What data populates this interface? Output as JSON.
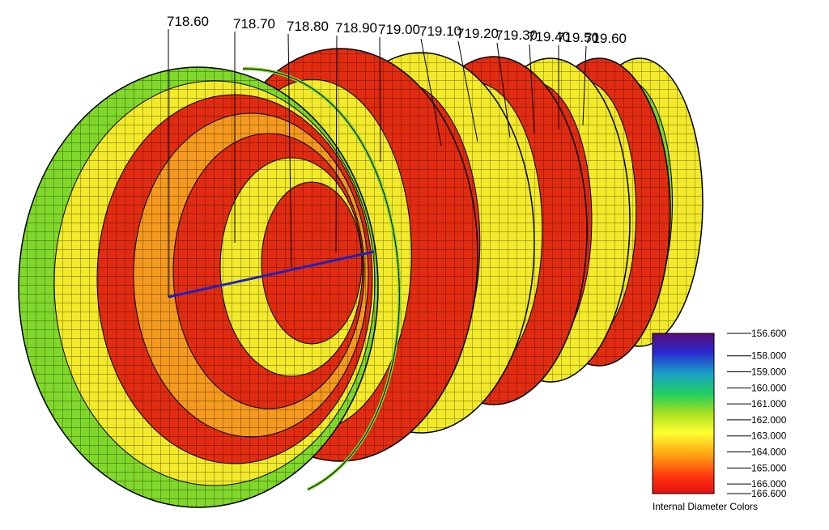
{
  "stations": [
    "718.60",
    "718.70",
    "718.80",
    "718.90",
    "719.00",
    "719.10",
    "719.20",
    "719.30",
    "719.40",
    "719.50",
    "719.60"
  ],
  "legend": {
    "title": "Internal Diameter Colors",
    "ticks": [
      "156.600",
      "158.000",
      "159.000",
      "160.000",
      "161.000",
      "162.000",
      "163.000",
      "164.000",
      "165.000",
      "166.000",
      "166.600"
    ],
    "min": 156.6,
    "max": 166.6,
    "gradient_colors": [
      "#5a0a78",
      "#2a2ad0",
      "#1aa0c8",
      "#22d060",
      "#a8e020",
      "#ffff30",
      "#ffa010",
      "#ff3010",
      "#e01010"
    ]
  },
  "colors": {
    "wire": "#000000",
    "axis_line": "#2020c0",
    "green": "#7fd82a",
    "yellow": "#f2ea2a",
    "orange": "#f59a1e",
    "red": "#e22c12"
  }
}
